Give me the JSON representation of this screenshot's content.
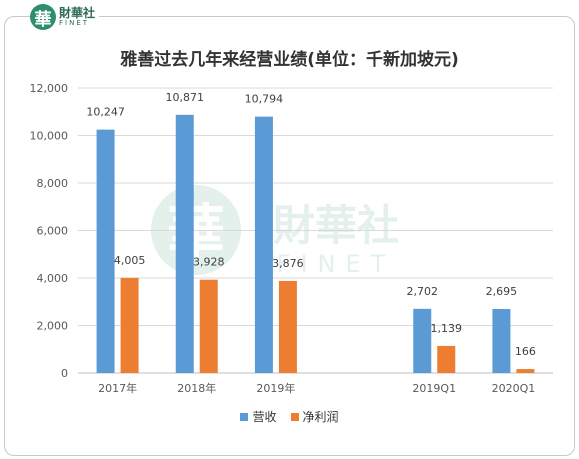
{
  "watermark": {
    "logo_glyph": "華",
    "logo_cn": "財華社",
    "logo_en": "FINET"
  },
  "chart_data": {
    "type": "bar",
    "title": "雅善过去几年来经营业绩(单位：千新加坡元)",
    "categories": [
      "2017年",
      "2018年",
      "2019年",
      "",
      "2019Q1",
      "2020Q1"
    ],
    "series": [
      {
        "name": "营收",
        "color": "#5b9bd5",
        "values": [
          10247,
          10871,
          10794,
          null,
          2702,
          2695
        ],
        "labels": [
          "10,247",
          "10,871",
          "10,794",
          "",
          "2,702",
          "2,695"
        ]
      },
      {
        "name": "净利润",
        "color": "#ed7d31",
        "values": [
          4005,
          3928,
          3876,
          null,
          1139,
          166
        ],
        "labels": [
          "4,005",
          "3,928",
          "3,876",
          "",
          "1,139",
          "166"
        ]
      }
    ],
    "ylim": [
      0,
      12000
    ],
    "yticks": [
      0,
      2000,
      4000,
      6000,
      8000,
      10000,
      12000
    ],
    "ytick_labels": [
      "0",
      "2,000",
      "4,000",
      "6,000",
      "8,000",
      "10,000",
      "12,000"
    ],
    "grid": true,
    "legend_position": "bottom"
  }
}
